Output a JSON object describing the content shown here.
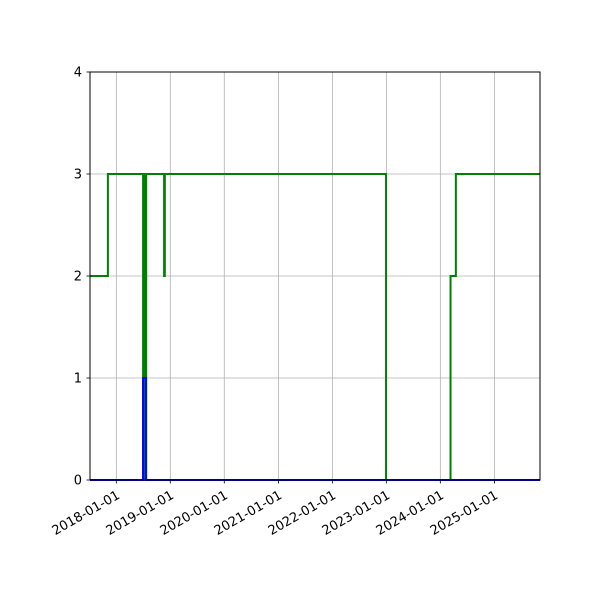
{
  "chart_data": {
    "type": "line",
    "title": "",
    "xlabel": "",
    "ylabel": "",
    "x_axis_type": "date",
    "xlim": [
      "2017-07-07",
      "2025-11-05"
    ],
    "ylim": [
      0,
      4
    ],
    "x_ticks": [
      "2018-01-01",
      "2019-01-01",
      "2020-01-01",
      "2021-01-01",
      "2022-01-01",
      "2023-01-01",
      "2024-01-01",
      "2025-01-01"
    ],
    "y_ticks": [
      0,
      1,
      2,
      3,
      4
    ],
    "grid": true,
    "legend": "none",
    "step": "post",
    "series": [
      {
        "color": "#0000ff",
        "points": [
          {
            "x": "2017-07-07",
            "y": 0
          },
          {
            "x": "2018-07-01",
            "y": 0
          },
          {
            "x": "2018-07-01",
            "y": 1
          },
          {
            "x": "2018-07-20",
            "y": 1
          },
          {
            "x": "2018-07-20",
            "y": 0
          },
          {
            "x": "2025-11-05",
            "y": 0
          }
        ]
      },
      {
        "color": "#008000",
        "points": [
          {
            "x": "2017-07-07",
            "y": 2
          },
          {
            "x": "2017-11-05",
            "y": 2
          },
          {
            "x": "2017-11-05",
            "y": 3
          },
          {
            "x": "2018-07-01",
            "y": 3
          },
          {
            "x": "2018-07-01",
            "y": 0
          },
          {
            "x": "2018-07-05",
            "y": 0
          },
          {
            "x": "2018-07-05",
            "y": 3
          },
          {
            "x": "2018-07-15",
            "y": 3
          },
          {
            "x": "2018-07-15",
            "y": 0
          },
          {
            "x": "2018-07-22",
            "y": 0
          },
          {
            "x": "2018-07-22",
            "y": 3
          },
          {
            "x": "2018-11-20",
            "y": 3
          },
          {
            "x": "2018-11-20",
            "y": 2
          },
          {
            "x": "2018-11-25",
            "y": 2
          },
          {
            "x": "2018-11-25",
            "y": 3
          },
          {
            "x": "2022-12-30",
            "y": 3
          },
          {
            "x": "2022-12-30",
            "y": 0
          },
          {
            "x": "2024-03-10",
            "y": 0
          },
          {
            "x": "2024-03-10",
            "y": 2
          },
          {
            "x": "2024-04-15",
            "y": 2
          },
          {
            "x": "2024-04-15",
            "y": 3
          },
          {
            "x": "2025-11-05",
            "y": 3
          }
        ]
      }
    ]
  }
}
